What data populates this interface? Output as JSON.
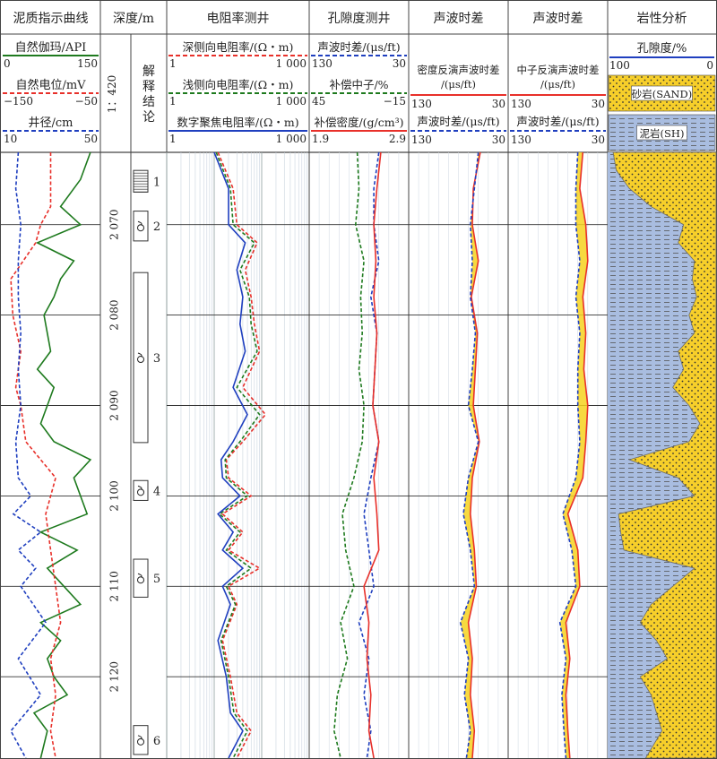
{
  "tracks": {
    "shale": {
      "title": "泥质指示曲线",
      "curves": [
        {
          "label": "自然伽玛/API",
          "min": "0",
          "max": "150",
          "color": "#1e7a1e",
          "style": "solid"
        },
        {
          "label": "自然电位/mV",
          "min": "−150",
          "max": "−50",
          "color": "#e8302a",
          "style": "dash"
        },
        {
          "label": "井径/cm",
          "min": "10",
          "max": "50",
          "color": "#1f3fbf",
          "style": "dash"
        }
      ]
    },
    "depth": {
      "title": "深度/m",
      "scale": "1：420",
      "conclusion": "解释结论"
    },
    "resist": {
      "title": "电阻率测井",
      "curves": [
        {
          "label": "深侧向电阻率/(Ω・m)",
          "min": "1",
          "max": "1 000",
          "color": "#e8302a",
          "style": "dash"
        },
        {
          "label": "浅侧向电阻率/(Ω・m)",
          "min": "1",
          "max": "1 000",
          "color": "#1e7a1e",
          "style": "dash"
        },
        {
          "label": "数字聚焦电阻率/(Ω・m)",
          "min": "1",
          "max": "1 000",
          "color": "#1f3fbf",
          "style": "solid"
        }
      ]
    },
    "poro": {
      "title": "孔隙度测井",
      "curves": [
        {
          "label": "声波时差/(μs/ft)",
          "min": "130",
          "max": "30",
          "color": "#1f3fbf",
          "style": "dash"
        },
        {
          "label": "补偿中子/%",
          "min": "45",
          "max": "−15",
          "color": "#1e7a1e",
          "style": "dash"
        },
        {
          "label": "补偿密度/(g/cm³)",
          "min": "1.9",
          "max": "2.9",
          "color": "#e8302a",
          "style": "solid"
        }
      ]
    },
    "sonic1": {
      "title": "声波时差",
      "curves": [
        {
          "label": "密度反演声波时差/(μs/ft)",
          "min": "130",
          "max": "30",
          "color": "#e8302a",
          "style": "solid"
        },
        {
          "label": "声波时差/(μs/ft)",
          "min": "130",
          "max": "30",
          "color": "#1f3fbf",
          "style": "dash"
        }
      ]
    },
    "sonic2": {
      "title": "声波时差",
      "curves": [
        {
          "label": "中子反演声波时差/(μs/ft)",
          "min": "130",
          "max": "30",
          "color": "#e8302a",
          "style": "solid"
        },
        {
          "label": "声波时差/(μs/ft)",
          "min": "130",
          "max": "30",
          "color": "#1f3fbf",
          "style": "dash"
        }
      ]
    },
    "litho": {
      "title": "岩性分析",
      "porosity_label": "孔隙度/%",
      "porosity_min": "100",
      "porosity_max": "0",
      "sand_label": "砂岩(SAND)",
      "shale_label": "泥岩(SH)",
      "sand_color": "#f7cf2a",
      "shale_color": "#a9bde0"
    }
  },
  "chart_data": {
    "type": "line",
    "depth_min": 2062,
    "depth_max": 2129,
    "depth_ticks": [
      "2 070",
      "2 080",
      "2 090",
      "2 100",
      "2 110",
      "2 120"
    ],
    "depth_tick_values": [
      2070,
      2080,
      2090,
      2100,
      2110,
      2120
    ],
    "conclusions": [
      {
        "label": "1",
        "top": 2064,
        "bottom": 2066.4,
        "type": "hatched"
      },
      {
        "label": "2",
        "top": 2068.5,
        "bottom": 2071.8,
        "type": "oil"
      },
      {
        "label": "3",
        "top": 2075.3,
        "bottom": 2094.1,
        "type": "oil"
      },
      {
        "label": "4",
        "top": 2098.3,
        "bottom": 2100.5,
        "type": "oil"
      },
      {
        "label": "5",
        "top": 2107,
        "bottom": 2111.2,
        "type": "oil"
      },
      {
        "label": "6",
        "top": 2125.4,
        "bottom": 2128.6,
        "type": "oil"
      }
    ],
    "series": [
      {
        "name": "自然伽玛",
        "track": "shale",
        "range": [
          0,
          150
        ],
        "color": "#1e7a1e",
        "dash": false,
        "depth": [
          2062,
          2065,
          2068,
          2070,
          2072,
          2074,
          2076,
          2078,
          2080,
          2082,
          2084,
          2086,
          2088,
          2090,
          2092,
          2094,
          2096,
          2098,
          2100,
          2102,
          2104,
          2106,
          2108,
          2110,
          2112,
          2114,
          2116,
          2118,
          2120,
          2122,
          2124,
          2126,
          2129
        ],
        "values": [
          135,
          120,
          90,
          120,
          55,
          110,
          90,
          80,
          65,
          70,
          75,
          55,
          80,
          70,
          60,
          80,
          135,
          110,
          120,
          130,
          60,
          115,
          70,
          95,
          120,
          60,
          90,
          70,
          80,
          100,
          50,
          70,
          60
        ]
      },
      {
        "name": "自然电位",
        "track": "shale",
        "range": [
          -150,
          -50
        ],
        "color": "#e8302a",
        "dash": true,
        "depth": [
          2062,
          2068,
          2070,
          2072,
          2076,
          2080,
          2084,
          2088,
          2090,
          2094,
          2098,
          2102,
          2106,
          2110,
          2114,
          2118,
          2122,
          2126,
          2129
        ],
        "values": [
          -100,
          -100,
          -110,
          -115,
          -140,
          -138,
          -130,
          -135,
          -130,
          -125,
          -95,
          -105,
          -100,
          -95,
          -90,
          -100,
          -95,
          -100,
          -95
        ]
      },
      {
        "name": "井径",
        "track": "shale",
        "range": [
          10,
          50
        ],
        "color": "#1f3fbf",
        "dash": true,
        "depth": [
          2062,
          2066,
          2070,
          2074,
          2078,
          2082,
          2086,
          2090,
          2094,
          2098,
          2100,
          2102,
          2104,
          2106,
          2108,
          2110,
          2114,
          2118,
          2122,
          2126,
          2129
        ],
        "values": [
          17,
          16,
          18,
          17,
          17,
          18,
          17,
          18,
          16,
          17,
          22,
          15,
          26,
          17,
          24,
          18,
          28,
          17,
          26,
          14,
          20
        ]
      },
      {
        "name": "深侧向电阻率",
        "track": "resist",
        "range": [
          1,
          1000
        ],
        "log": true,
        "color": "#e8302a",
        "dash": true,
        "depth": [
          2062,
          2066,
          2070,
          2072,
          2075,
          2078,
          2081,
          2084,
          2088,
          2091,
          2094,
          2096,
          2098,
          2100,
          2102,
          2104,
          2106,
          2108,
          2110,
          2112,
          2116,
          2120,
          2124,
          2126,
          2129
        ],
        "values": [
          12,
          25,
          30,
          80,
          45,
          60,
          70,
          90,
          40,
          120,
          40,
          18,
          20,
          60,
          15,
          40,
          20,
          90,
          20,
          30,
          15,
          22,
          30,
          60,
          30
        ]
      },
      {
        "name": "浅侧向电阻率",
        "track": "resist",
        "range": [
          1,
          1000
        ],
        "log": true,
        "color": "#1e7a1e",
        "dash": true,
        "depth": [
          2062,
          2066,
          2070,
          2072,
          2075,
          2078,
          2081,
          2084,
          2088,
          2091,
          2094,
          2096,
          2098,
          2100,
          2102,
          2104,
          2106,
          2108,
          2110,
          2112,
          2116,
          2120,
          2124,
          2126,
          2129
        ],
        "values": [
          11,
          22,
          25,
          70,
          35,
          55,
          60,
          80,
          30,
          90,
          35,
          17,
          18,
          50,
          13,
          35,
          18,
          60,
          18,
          28,
          14,
          20,
          26,
          50,
          25
        ]
      },
      {
        "name": "数字聚焦电阻率",
        "track": "resist",
        "range": [
          1,
          1000
        ],
        "log": true,
        "color": "#1f3fbf",
        "dash": false,
        "depth": [
          2062,
          2066,
          2070,
          2072,
          2075,
          2078,
          2081,
          2084,
          2088,
          2091,
          2094,
          2096,
          2098,
          2100,
          2102,
          2104,
          2106,
          2108,
          2110,
          2112,
          2116,
          2120,
          2124,
          2126,
          2129
        ],
        "values": [
          10,
          20,
          20,
          45,
          30,
          40,
          35,
          45,
          25,
          50,
          25,
          14,
          15,
          35,
          12,
          25,
          15,
          40,
          15,
          22,
          12,
          18,
          22,
          40,
          20
        ]
      },
      {
        "name": "声波时差",
        "track": "poro",
        "range": [
          130,
          30
        ],
        "color": "#1f3fbf",
        "dash": true,
        "depth": [
          2062,
          2066,
          2070,
          2074,
          2078,
          2082,
          2086,
          2090,
          2094,
          2098,
          2102,
          2106,
          2110,
          2114,
          2118,
          2122,
          2126,
          2129
        ],
        "values": [
          60,
          65,
          65,
          60,
          68,
          62,
          64,
          66,
          60,
          68,
          75,
          70,
          65,
          80,
          70,
          75,
          68,
          72
        ]
      },
      {
        "name": "补偿中子",
        "track": "poro",
        "range": [
          45,
          -15
        ],
        "color": "#1e7a1e",
        "dash": true,
        "depth": [
          2062,
          2066,
          2070,
          2074,
          2078,
          2082,
          2086,
          2090,
          2094,
          2098,
          2102,
          2106,
          2110,
          2114,
          2118,
          2122,
          2126,
          2129
        ],
        "values": [
          16,
          15,
          17,
          12,
          14,
          13,
          15,
          12,
          13,
          18,
          25,
          23,
          18,
          26,
          22,
          28,
          30,
          26
        ]
      },
      {
        "name": "补偿密度",
        "track": "poro",
        "range": [
          1.9,
          2.9
        ],
        "color": "#e8302a",
        "dash": false,
        "depth": [
          2062,
          2066,
          2070,
          2074,
          2078,
          2082,
          2086,
          2090,
          2094,
          2098,
          2102,
          2106,
          2110,
          2114,
          2118,
          2122,
          2126,
          2129
        ],
        "values": [
          2.62,
          2.58,
          2.55,
          2.57,
          2.55,
          2.58,
          2.56,
          2.54,
          2.6,
          2.55,
          2.58,
          2.6,
          2.45,
          2.5,
          2.48,
          2.52,
          2.5,
          2.55
        ]
      },
      {
        "name": "密度反演声波时差",
        "track": "sonic1",
        "range": [
          130,
          30
        ],
        "color": "#e8302a",
        "dash": false,
        "depth": [
          2062,
          2066,
          2070,
          2074,
          2078,
          2082,
          2086,
          2090,
          2094,
          2098,
          2102,
          2106,
          2110,
          2114,
          2118,
          2122,
          2126,
          2129
        ],
        "values": [
          58,
          65,
          66,
          60,
          67,
          61,
          63,
          65,
          59,
          66,
          68,
          64,
          62,
          70,
          66,
          68,
          64,
          66
        ]
      },
      {
        "name": "声波时差",
        "track": "sonic1",
        "range": [
          130,
          30
        ],
        "color": "#1f3fbf",
        "dash": true,
        "depth": [
          2062,
          2066,
          2070,
          2074,
          2078,
          2082,
          2086,
          2090,
          2094,
          2098,
          2102,
          2106,
          2110,
          2114,
          2118,
          2122,
          2126,
          2129
        ],
        "values": [
          60,
          64,
          68,
          66,
          68,
          63,
          66,
          70,
          60,
          70,
          75,
          68,
          64,
          78,
          70,
          74,
          68,
          72
        ]
      },
      {
        "name": "中子反演声波时差",
        "track": "sonic2",
        "range": [
          130,
          30
        ],
        "color": "#e8302a",
        "dash": false,
        "depth": [
          2062,
          2066,
          2070,
          2074,
          2078,
          2082,
          2086,
          2090,
          2094,
          2098,
          2102,
          2106,
          2110,
          2114,
          2118,
          2122,
          2126,
          2129
        ],
        "values": [
          55,
          58,
          52,
          50,
          55,
          52,
          54,
          50,
          52,
          55,
          70,
          60,
          58,
          72,
          68,
          72,
          70,
          68
        ]
      },
      {
        "name": "声波时差",
        "track": "sonic2",
        "range": [
          130,
          30
        ],
        "color": "#1f3fbf",
        "dash": true,
        "depth": [
          2062,
          2066,
          2070,
          2074,
          2078,
          2082,
          2086,
          2090,
          2094,
          2098,
          2102,
          2106,
          2110,
          2114,
          2118,
          2122,
          2126,
          2129
        ],
        "values": [
          60,
          62,
          62,
          58,
          62,
          58,
          60,
          60,
          58,
          62,
          75,
          66,
          62,
          78,
          72,
          76,
          74,
          72
        ]
      },
      {
        "name": "孔隙度",
        "track": "litho",
        "range": [
          100,
          0
        ],
        "color": "#555555",
        "dash": false,
        "depth": [
          2062,
          2064,
          2066,
          2068,
          2070,
          2072,
          2074,
          2076,
          2078,
          2080,
          2082,
          2084,
          2086,
          2088,
          2090,
          2092,
          2094,
          2096,
          2098,
          2100,
          2102,
          2104,
          2106,
          2108,
          2110,
          2112,
          2114,
          2116,
          2118,
          2120,
          2122,
          2124,
          2126,
          2129
        ],
        "values": [
          95,
          92,
          80,
          60,
          30,
          35,
          20,
          22,
          18,
          25,
          20,
          35,
          30,
          40,
          25,
          15,
          25,
          80,
          35,
          20,
          90,
          88,
          85,
          20,
          40,
          60,
          70,
          55,
          45,
          70,
          60,
          55,
          50,
          65
        ]
      }
    ]
  }
}
